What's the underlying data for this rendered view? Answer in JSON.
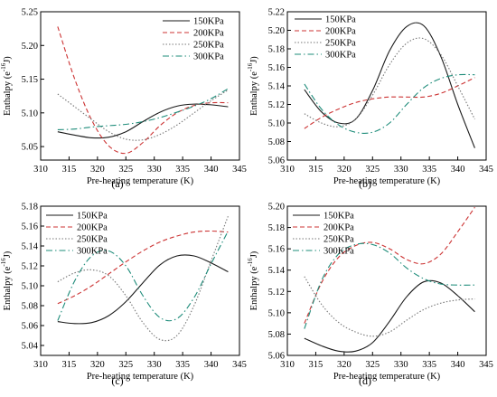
{
  "chart_data": [
    {
      "panel_label": "(a)",
      "type": "line",
      "xlabel": "Pre-heating temperature (K)",
      "ylabel": "Enthalpy (e",
      "ylabel_exp": "-16",
      "ylabel_tail": "J)",
      "xlim": [
        310,
        345
      ],
      "ylim": [
        5.03,
        5.25
      ],
      "xticks": [
        310,
        315,
        320,
        325,
        330,
        335,
        340,
        345
      ],
      "yticks": [
        5.05,
        5.1,
        5.15,
        5.2,
        5.25
      ],
      "ytick_labels": [
        "5.05",
        "5.10",
        "5.15",
        "5.20",
        "5.25"
      ],
      "legend_position": "top-right",
      "series": [
        {
          "name": "150KPa",
          "x": [
            313,
            316,
            319,
            322,
            325,
            328,
            331,
            334,
            337,
            340,
            343
          ],
          "values": [
            5.072,
            5.067,
            5.063,
            5.064,
            5.072,
            5.087,
            5.101,
            5.11,
            5.113,
            5.112,
            5.109
          ]
        },
        {
          "name": "200KPa",
          "x": [
            313,
            316,
            319,
            322,
            325,
            328,
            331,
            334,
            337,
            340,
            343
          ],
          "values": [
            5.228,
            5.15,
            5.089,
            5.051,
            5.04,
            5.056,
            5.081,
            5.1,
            5.111,
            5.115,
            5.115
          ]
        },
        {
          "name": "250KPa",
          "x": [
            313,
            316,
            319,
            322,
            325,
            328,
            331,
            334,
            337,
            340,
            343
          ],
          "values": [
            5.128,
            5.109,
            5.09,
            5.072,
            5.061,
            5.06,
            5.068,
            5.082,
            5.1,
            5.118,
            5.134
          ]
        },
        {
          "name": "300KPa",
          "x": [
            313,
            316,
            319,
            322,
            325,
            328,
            331,
            334,
            337,
            340,
            343
          ],
          "values": [
            5.075,
            5.076,
            5.079,
            5.081,
            5.083,
            5.087,
            5.093,
            5.101,
            5.11,
            5.121,
            5.136
          ]
        }
      ]
    },
    {
      "panel_label": "(b)",
      "type": "line",
      "xlabel": "Pre-heating temperature (K)",
      "ylabel": "Enthalpy (e",
      "ylabel_exp": "-16",
      "ylabel_tail": "J)",
      "xlim": [
        310,
        345
      ],
      "ylim": [
        5.06,
        5.22
      ],
      "xticks": [
        310,
        315,
        320,
        325,
        330,
        335,
        340,
        345
      ],
      "yticks": [
        5.06,
        5.08,
        5.1,
        5.12,
        5.14,
        5.16,
        5.18,
        5.2,
        5.22
      ],
      "ytick_labels": [
        "5.06",
        "5.08",
        "5.10",
        "5.12",
        "5.14",
        "5.16",
        "5.18",
        "5.20",
        "5.22"
      ],
      "legend_position": "top-left",
      "series": [
        {
          "name": "150KPa",
          "x": [
            313,
            316,
            319,
            322,
            325,
            328,
            331,
            334,
            337,
            340,
            343
          ],
          "values": [
            5.136,
            5.112,
            5.1,
            5.104,
            5.135,
            5.178,
            5.204,
            5.205,
            5.172,
            5.12,
            5.073
          ]
        },
        {
          "name": "200KPa",
          "x": [
            313,
            316,
            319,
            322,
            325,
            328,
            331,
            334,
            337,
            340,
            343
          ],
          "values": [
            5.094,
            5.106,
            5.115,
            5.122,
            5.126,
            5.128,
            5.128,
            5.128,
            5.132,
            5.14,
            5.149
          ]
        },
        {
          "name": "250KPa",
          "x": [
            313,
            316,
            319,
            322,
            325,
            328,
            331,
            334,
            337,
            340,
            343
          ],
          "values": [
            5.11,
            5.1,
            5.096,
            5.104,
            5.13,
            5.163,
            5.186,
            5.191,
            5.174,
            5.14,
            5.104
          ]
        },
        {
          "name": "300KPa",
          "x": [
            313,
            316,
            319,
            322,
            325,
            328,
            331,
            334,
            337,
            340,
            343
          ],
          "values": [
            5.142,
            5.115,
            5.098,
            5.09,
            5.09,
            5.1,
            5.12,
            5.138,
            5.148,
            5.152,
            5.152
          ]
        }
      ]
    },
    {
      "panel_label": "(c)",
      "type": "line",
      "xlabel": "Pre-heating temperature (K)",
      "ylabel": "Enthalpy (e",
      "ylabel_exp": "-16",
      "ylabel_tail": "J)",
      "xlim": [
        310,
        345
      ],
      "ylim": [
        5.03,
        5.18
      ],
      "xticks": [
        310,
        315,
        320,
        325,
        330,
        335,
        340,
        345
      ],
      "yticks": [
        5.04,
        5.06,
        5.08,
        5.1,
        5.12,
        5.14,
        5.16,
        5.18
      ],
      "ytick_labels": [
        "5.04",
        "5.06",
        "5.08",
        "5.10",
        "5.12",
        "5.14",
        "5.16",
        "5.18"
      ],
      "legend_position": "top-left",
      "series": [
        {
          "name": "150KPa",
          "x": [
            313,
            316,
            319,
            322,
            325,
            328,
            331,
            334,
            337,
            340,
            343
          ],
          "values": [
            5.064,
            5.062,
            5.063,
            5.07,
            5.084,
            5.103,
            5.121,
            5.13,
            5.13,
            5.123,
            5.114
          ]
        },
        {
          "name": "200KPa",
          "x": [
            313,
            316,
            319,
            322,
            325,
            328,
            331,
            334,
            337,
            340,
            343
          ],
          "values": [
            5.082,
            5.09,
            5.1,
            5.112,
            5.124,
            5.135,
            5.144,
            5.15,
            5.154,
            5.155,
            5.154
          ]
        },
        {
          "name": "250KPa",
          "x": [
            313,
            316,
            319,
            322,
            325,
            328,
            331,
            334,
            337,
            340,
            343
          ],
          "values": [
            5.104,
            5.113,
            5.116,
            5.11,
            5.09,
            5.063,
            5.046,
            5.05,
            5.08,
            5.125,
            5.17
          ]
        },
        {
          "name": "300KPa",
          "x": [
            313,
            316,
            319,
            322,
            325,
            328,
            331,
            334,
            337,
            340,
            343
          ],
          "values": [
            5.065,
            5.105,
            5.13,
            5.135,
            5.12,
            5.09,
            5.068,
            5.067,
            5.088,
            5.122,
            5.155
          ]
        }
      ]
    },
    {
      "panel_label": "(d)",
      "type": "line",
      "xlabel": "Pre-heating temperature (K)",
      "ylabel": "Enthalpy (e",
      "ylabel_exp": "-16",
      "ylabel_tail": "J)",
      "xlim": [
        310,
        345
      ],
      "ylim": [
        5.06,
        5.2
      ],
      "xticks": [
        310,
        315,
        320,
        325,
        330,
        335,
        340,
        345
      ],
      "yticks": [
        5.06,
        5.08,
        5.1,
        5.12,
        5.14,
        5.16,
        5.18,
        5.2
      ],
      "ytick_labels": [
        "5.06",
        "5.08",
        "5.10",
        "5.12",
        "5.14",
        "5.16",
        "5.18",
        "5.20"
      ],
      "legend_position": "top-left",
      "series": [
        {
          "name": "150KPa",
          "x": [
            313,
            316,
            319,
            322,
            325,
            328,
            331,
            334,
            337,
            340,
            343
          ],
          "values": [
            5.076,
            5.069,
            5.064,
            5.064,
            5.072,
            5.092,
            5.115,
            5.129,
            5.128,
            5.116,
            5.101
          ]
        },
        {
          "name": "200KPa",
          "x": [
            313,
            316,
            319,
            322,
            325,
            328,
            331,
            334,
            337,
            340,
            343
          ],
          "values": [
            5.09,
            5.128,
            5.152,
            5.163,
            5.166,
            5.16,
            5.15,
            5.146,
            5.155,
            5.176,
            5.199
          ]
        },
        {
          "name": "250KPa",
          "x": [
            313,
            316,
            319,
            322,
            325,
            328,
            331,
            334,
            337,
            340,
            343
          ],
          "values": [
            5.134,
            5.108,
            5.091,
            5.082,
            5.078,
            5.082,
            5.093,
            5.103,
            5.109,
            5.112,
            5.113
          ]
        },
        {
          "name": "300KPa",
          "x": [
            313,
            316,
            319,
            322,
            325,
            328,
            331,
            334,
            337,
            340,
            343
          ],
          "values": [
            5.085,
            5.13,
            5.155,
            5.164,
            5.164,
            5.156,
            5.142,
            5.132,
            5.127,
            5.126,
            5.126
          ]
        }
      ]
    }
  ],
  "style": {
    "series_colors": [
      "#1a1a1a",
      "#cc3333",
      "#777777",
      "#1e8c7a"
    ],
    "series_dash": [
      "none",
      "5,3",
      "1.5,2",
      "7,3,1.5,3"
    ]
  }
}
